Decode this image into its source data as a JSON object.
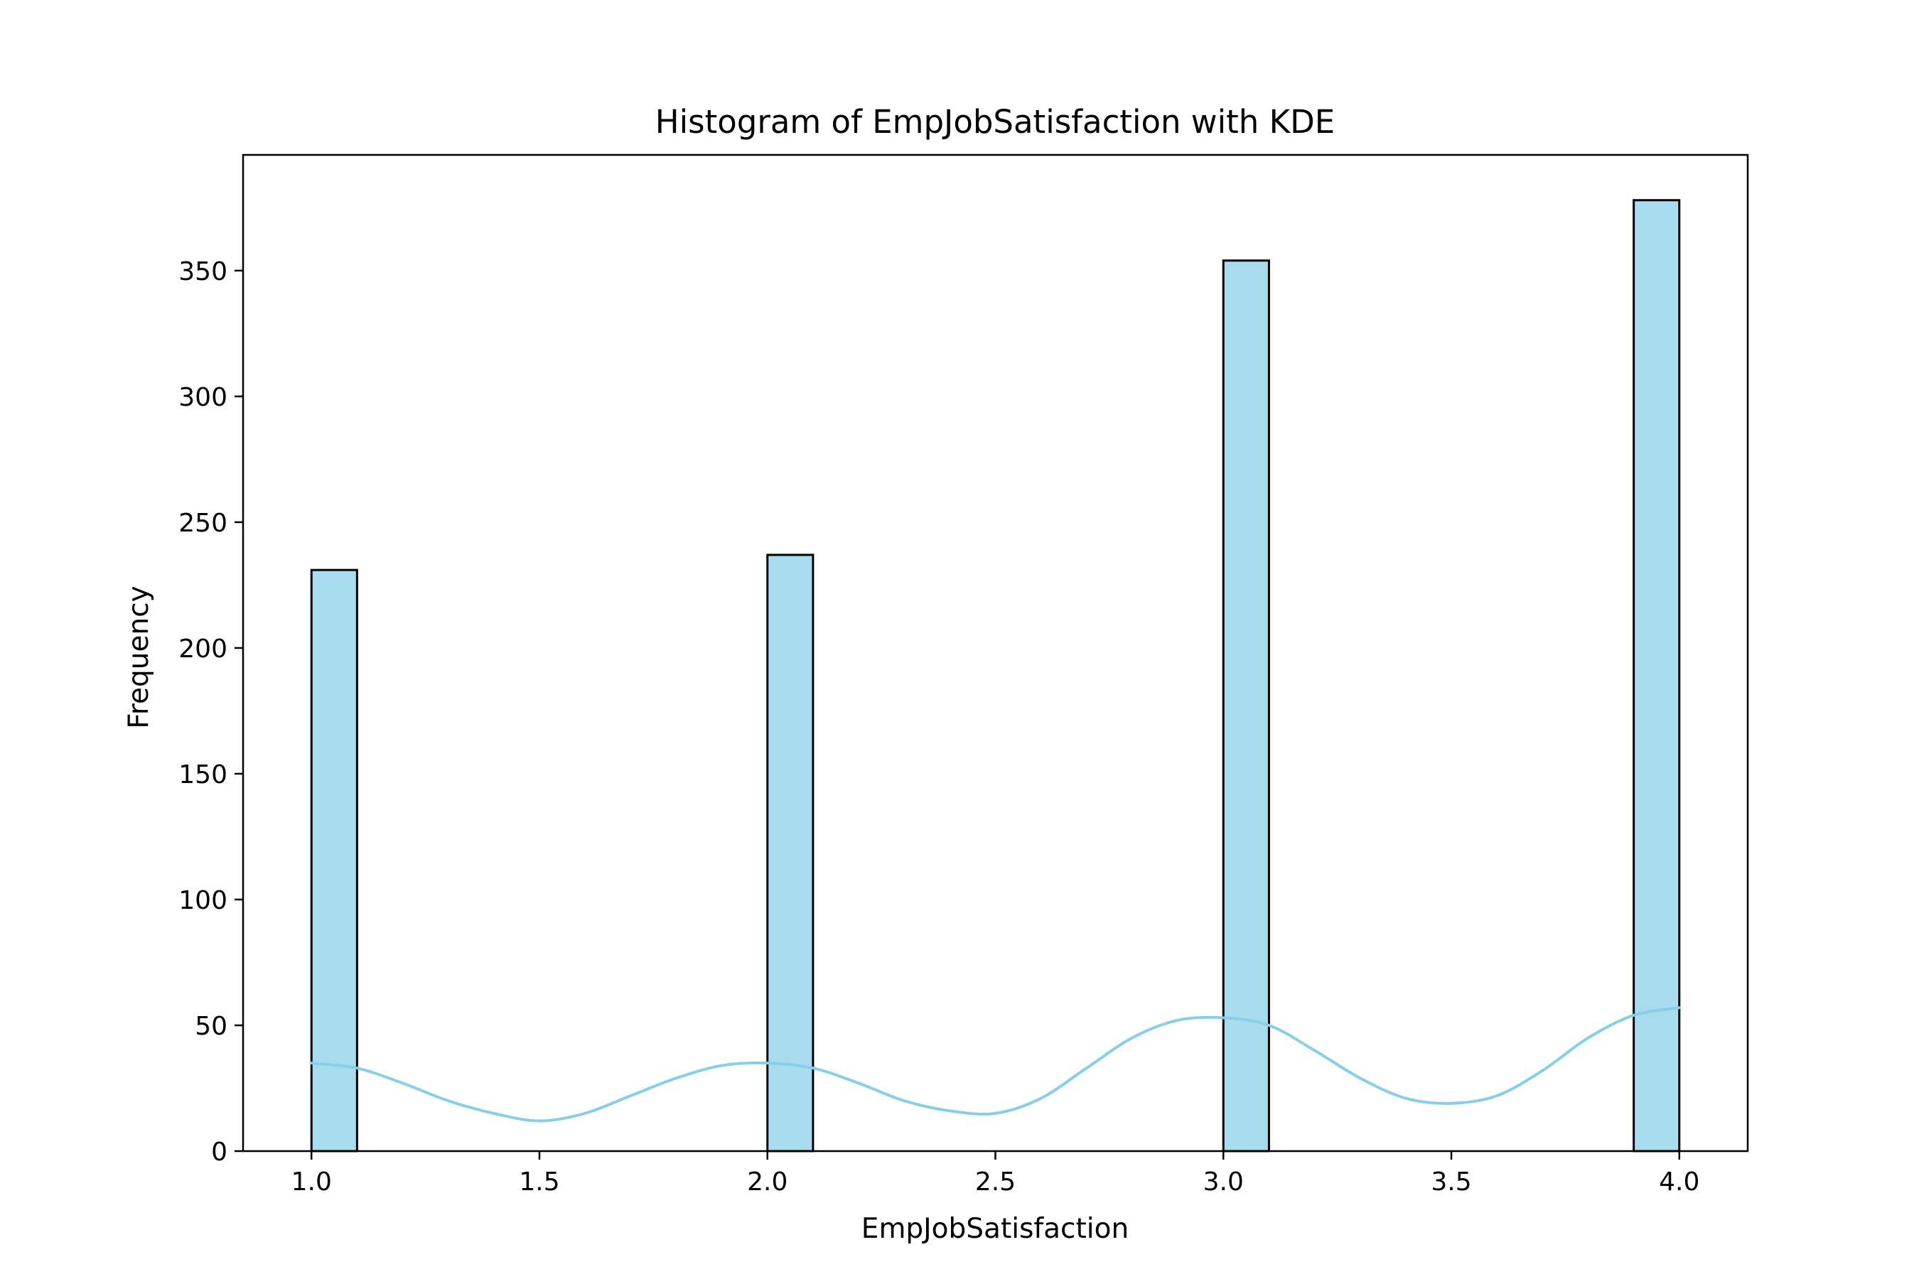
{
  "chart_data": {
    "type": "bar",
    "title": "Histogram of EmpJobSatisfaction with KDE",
    "xlabel": "EmpJobSatisfaction",
    "ylabel": "Frequency",
    "xlim": [
      0.85,
      4.15
    ],
    "ylim": [
      0,
      396
    ],
    "grid": false,
    "bin_width": 0.1,
    "xticks": [
      1.0,
      1.5,
      2.0,
      2.5,
      3.0,
      3.5,
      4.0
    ],
    "xtick_labels": [
      "1.0",
      "1.5",
      "2.0",
      "2.5",
      "3.0",
      "3.5",
      "4.0"
    ],
    "yticks": [
      0,
      50,
      100,
      150,
      200,
      250,
      300,
      350
    ],
    "ytick_labels": [
      "0",
      "50",
      "100",
      "150",
      "200",
      "250",
      "300",
      "350"
    ],
    "bars": [
      {
        "x_start": 1.0,
        "x_end": 1.1,
        "value": 231
      },
      {
        "x_start": 1.9,
        "x_end": 2.0,
        "value": 0
      },
      {
        "x_start": 2.0,
        "x_end": 2.1,
        "value": 237
      },
      {
        "x_start": 3.0,
        "x_end": 3.1,
        "value": 354
      },
      {
        "x_start": 3.9,
        "x_end": 4.0,
        "value": 378
      }
    ],
    "kde": {
      "x": [
        1.0,
        1.1,
        1.2,
        1.3,
        1.4,
        1.5,
        1.6,
        1.7,
        1.8,
        1.9,
        2.0,
        2.1,
        2.2,
        2.3,
        2.4,
        2.5,
        2.6,
        2.7,
        2.8,
        2.9,
        3.0,
        3.1,
        3.2,
        3.3,
        3.4,
        3.5,
        3.6,
        3.7,
        3.8,
        3.9,
        4.0
      ],
      "y": [
        35,
        33,
        27,
        20,
        15,
        12,
        15,
        22,
        29,
        34,
        35,
        33,
        27,
        20,
        16,
        15,
        21,
        33,
        45,
        52,
        53,
        50,
        40,
        29,
        21,
        19,
        22,
        32,
        45,
        54,
        57
      ]
    },
    "colors": {
      "bar_fill": "#a9dbee",
      "bar_edge": "#000000",
      "kde_line": "#87ceeb"
    }
  }
}
